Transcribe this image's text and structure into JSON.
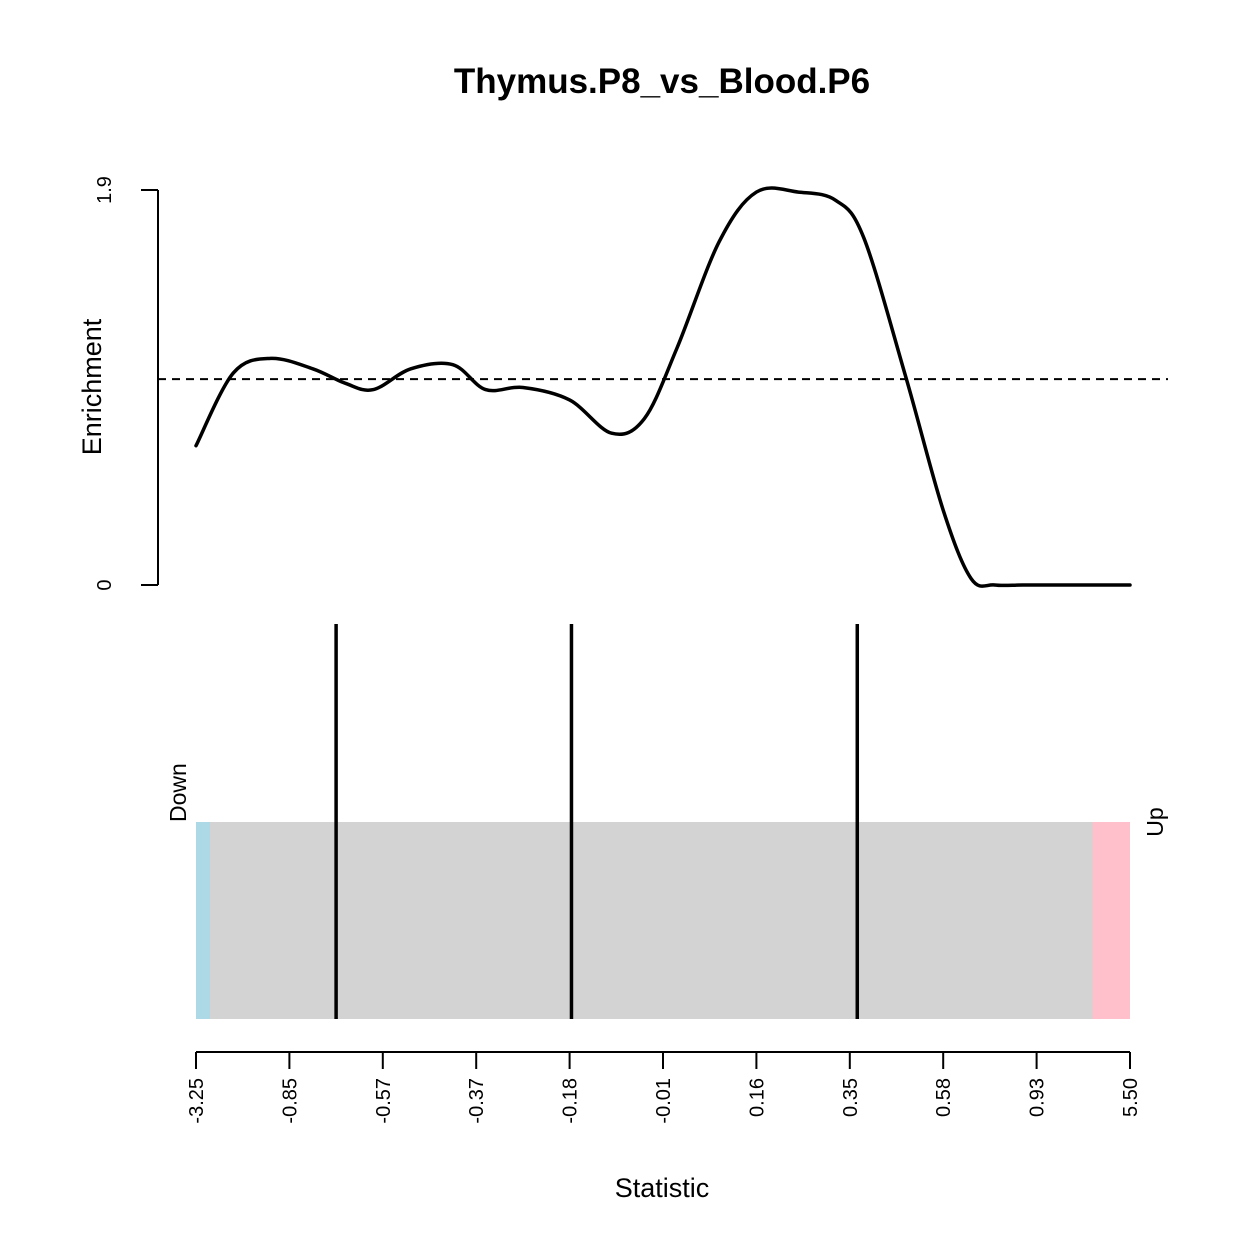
{
  "chart_data": {
    "type": "line",
    "title": "Thymus.P8_vs_Blood.P6",
    "xlabel": "Statistic",
    "ylabel": "Enrichment",
    "ylim": [
      0,
      1.9
    ],
    "y_ticks": [
      "0",
      "1.9"
    ],
    "reference_line": 0.99,
    "enrichment_curve": {
      "x_rank": [
        0,
        0.04,
        0.08,
        0.125,
        0.16,
        0.19,
        0.23,
        0.275,
        0.31,
        0.35,
        0.4,
        0.445,
        0.48,
        0.515,
        0.56,
        0.6,
        0.645,
        0.685,
        0.715,
        0.76,
        0.8,
        0.83,
        0.855,
        0.885,
        0.92,
        1.0
      ],
      "y": [
        0.67,
        1.02,
        1.09,
        1.04,
        0.97,
        0.94,
        1.04,
        1.06,
        0.94,
        0.95,
        0.89,
        0.73,
        0.8,
        1.14,
        1.65,
        1.89,
        1.89,
        1.85,
        1.67,
        1.0,
        0.36,
        0.03,
        0.0,
        0.0,
        0.0,
        0.0
      ]
    },
    "barcode": {
      "down_label": "Down",
      "up_label": "Up",
      "down_color": "#add8e6",
      "middle_color": "#d3d3d3",
      "up_color": "#ffc0cb",
      "down_region_end_rank": 0.015,
      "up_region_start_rank": 0.96,
      "marker_ranks": [
        0.15,
        0.402,
        0.708
      ]
    },
    "x_tick_labels": [
      "-3.25",
      "-0.85",
      "-0.57",
      "-0.37",
      "-0.18",
      "-0.01",
      "0.16",
      "0.35",
      "0.58",
      "0.93",
      "5.50"
    ]
  }
}
